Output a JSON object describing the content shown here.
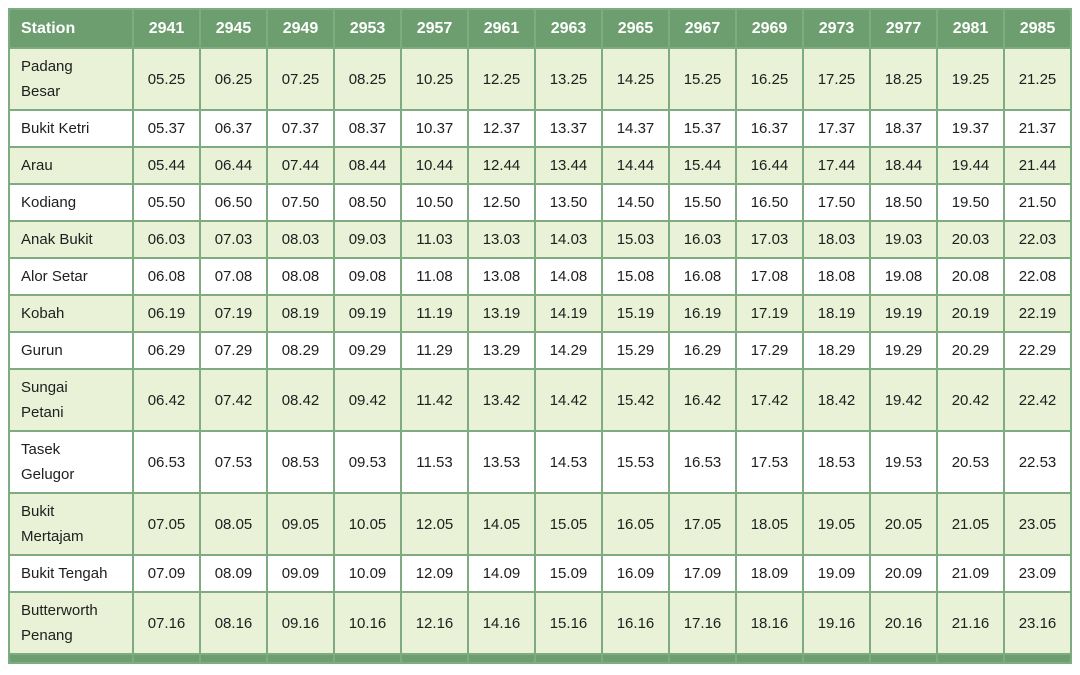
{
  "chart_data": {
    "type": "table",
    "columns": [
      "Station",
      "2941",
      "2945",
      "2949",
      "2953",
      "2957",
      "2961",
      "2963",
      "2965",
      "2967",
      "2969",
      "2973",
      "2977",
      "2981",
      "2985"
    ],
    "rows": [
      {
        "station": "Padang\nBesar",
        "times": [
          "05.25",
          "06.25",
          "07.25",
          "08.25",
          "10.25",
          "12.25",
          "13.25",
          "14.25",
          "15.25",
          "16.25",
          "17.25",
          "18.25",
          "19.25",
          "21.25"
        ]
      },
      {
        "station": "Bukit Ketri",
        "times": [
          "05.37",
          "06.37",
          "07.37",
          "08.37",
          "10.37",
          "12.37",
          "13.37",
          "14.37",
          "15.37",
          "16.37",
          "17.37",
          "18.37",
          "19.37",
          "21.37"
        ]
      },
      {
        "station": "Arau",
        "times": [
          "05.44",
          "06.44",
          "07.44",
          "08.44",
          "10.44",
          "12.44",
          "13.44",
          "14.44",
          "15.44",
          "16.44",
          "17.44",
          "18.44",
          "19.44",
          "21.44"
        ]
      },
      {
        "station": "Kodiang",
        "times": [
          "05.50",
          "06.50",
          "07.50",
          "08.50",
          "10.50",
          "12.50",
          "13.50",
          "14.50",
          "15.50",
          "16.50",
          "17.50",
          "18.50",
          "19.50",
          "21.50"
        ]
      },
      {
        "station": "Anak Bukit",
        "times": [
          "06.03",
          "07.03",
          "08.03",
          "09.03",
          "11.03",
          "13.03",
          "14.03",
          "15.03",
          "16.03",
          "17.03",
          "18.03",
          "19.03",
          "20.03",
          "22.03"
        ]
      },
      {
        "station": "Alor Setar",
        "times": [
          "06.08",
          "07.08",
          "08.08",
          "09.08",
          "11.08",
          "13.08",
          "14.08",
          "15.08",
          "16.08",
          "17.08",
          "18.08",
          "19.08",
          "20.08",
          "22.08"
        ]
      },
      {
        "station": "Kobah",
        "times": [
          "06.19",
          "07.19",
          "08.19",
          "09.19",
          "11.19",
          "13.19",
          "14.19",
          "15.19",
          "16.19",
          "17.19",
          "18.19",
          "19.19",
          "20.19",
          "22.19"
        ]
      },
      {
        "station": "Gurun",
        "times": [
          "06.29",
          "07.29",
          "08.29",
          "09.29",
          "11.29",
          "13.29",
          "14.29",
          "15.29",
          "16.29",
          "17.29",
          "18.29",
          "19.29",
          "20.29",
          "22.29"
        ]
      },
      {
        "station": "Sungai\nPetani",
        "times": [
          "06.42",
          "07.42",
          "08.42",
          "09.42",
          "11.42",
          "13.42",
          "14.42",
          "15.42",
          "16.42",
          "17.42",
          "18.42",
          "19.42",
          "20.42",
          "22.42"
        ]
      },
      {
        "station": "Tasek\nGelugor",
        "times": [
          "06.53",
          "07.53",
          "08.53",
          "09.53",
          "11.53",
          "13.53",
          "14.53",
          "15.53",
          "16.53",
          "17.53",
          "18.53",
          "19.53",
          "20.53",
          "22.53"
        ]
      },
      {
        "station": "Bukit\nMertajam",
        "times": [
          "07.05",
          "08.05",
          "09.05",
          "10.05",
          "12.05",
          "14.05",
          "15.05",
          "16.05",
          "17.05",
          "18.05",
          "19.05",
          "20.05",
          "21.05",
          "23.05"
        ]
      },
      {
        "station": "Bukit Tengah",
        "times": [
          "07.09",
          "08.09",
          "09.09",
          "10.09",
          "12.09",
          "14.09",
          "15.09",
          "16.09",
          "17.09",
          "18.09",
          "19.09",
          "20.09",
          "21.09",
          "23.09"
        ]
      },
      {
        "station": "Butterworth\nPenang",
        "times": [
          "07.16",
          "08.16",
          "09.16",
          "10.16",
          "12.16",
          "14.16",
          "15.16",
          "16.16",
          "17.16",
          "18.16",
          "19.16",
          "20.16",
          "21.16",
          "23.16"
        ]
      }
    ]
  },
  "colors": {
    "header_bg": "#6d9e70",
    "header_text": "#ffffff",
    "border": "#7fab80",
    "row_bg": "#ffffff",
    "row_alt_bg": "#e9f1d6",
    "cell_text": "#202020"
  }
}
